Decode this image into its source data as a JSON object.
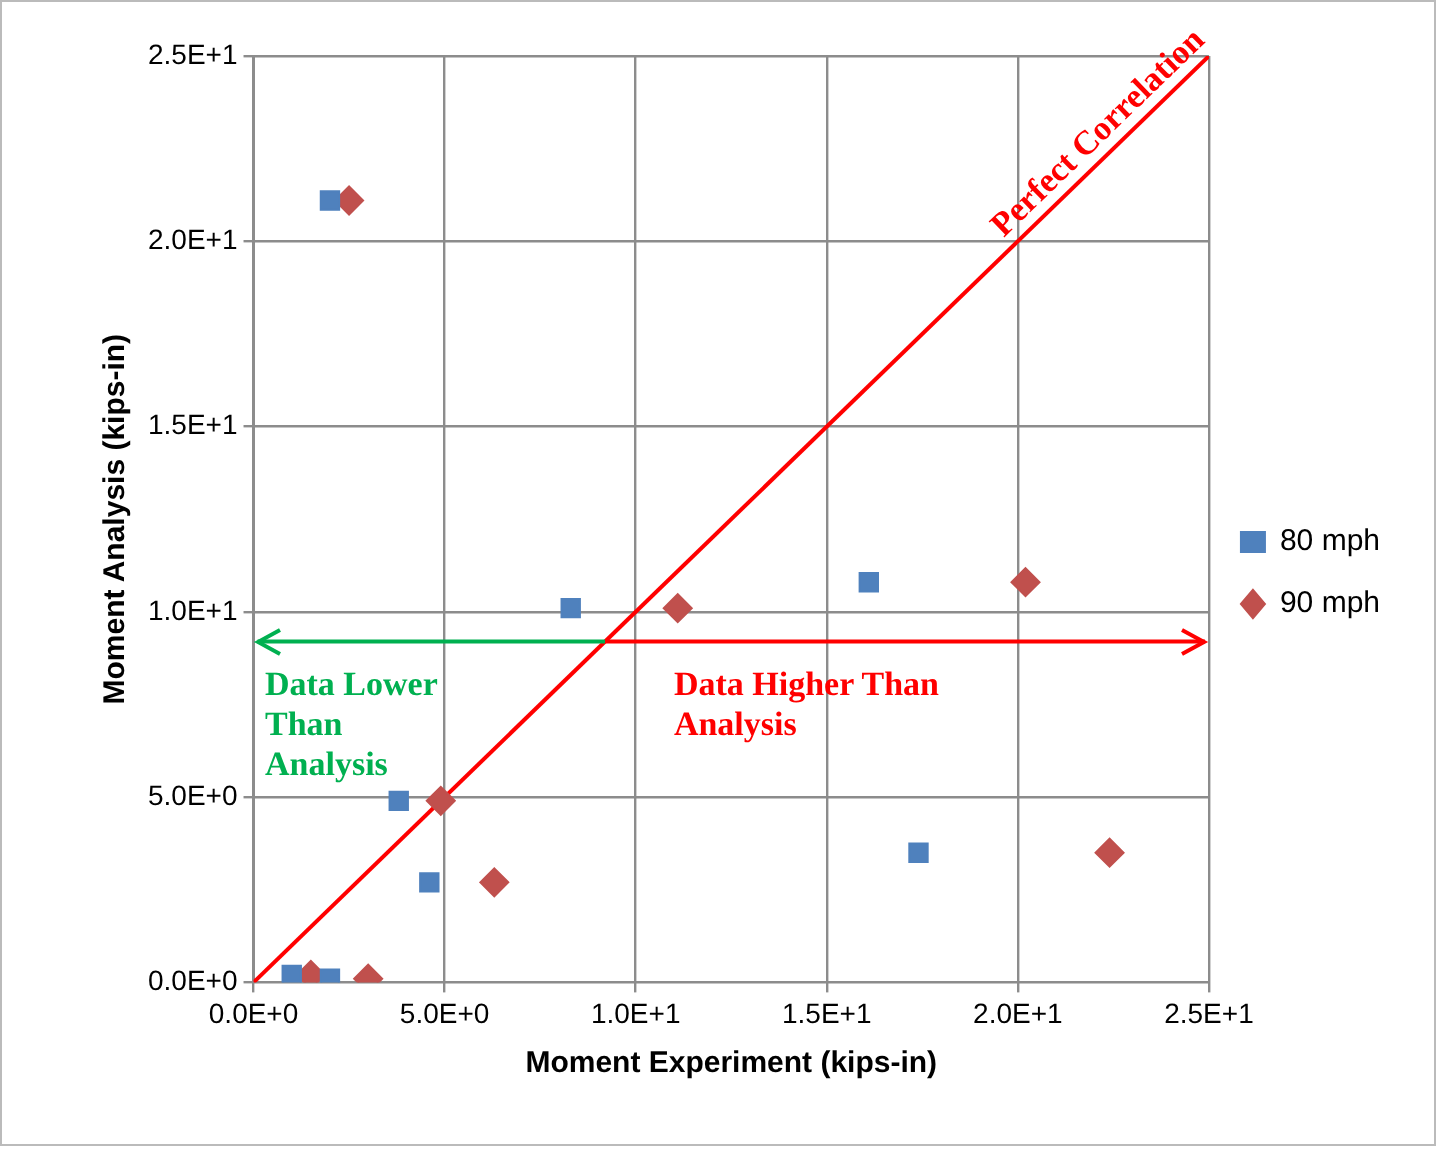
{
  "chart_data": {
    "type": "scatter",
    "xlabel": "Moment Experiment (kips-in)",
    "ylabel": "Moment Analysis (kips-in)",
    "xlim": [
      0,
      25
    ],
    "ylim": [
      0,
      25
    ],
    "xticks": [
      {
        "value": 0,
        "label": "0.0E+0"
      },
      {
        "value": 5,
        "label": "5.0E+0"
      },
      {
        "value": 10,
        "label": "1.0E+1"
      },
      {
        "value": 15,
        "label": "1.5E+1"
      },
      {
        "value": 20,
        "label": "2.0E+1"
      },
      {
        "value": 25,
        "label": "2.5E+1"
      }
    ],
    "yticks": [
      {
        "value": 0,
        "label": "0.0E+0"
      },
      {
        "value": 5,
        "label": "5.0E+0"
      },
      {
        "value": 10,
        "label": "1.0E+1"
      },
      {
        "value": 15,
        "label": "1.5E+1"
      },
      {
        "value": 20,
        "label": "2.0E+1"
      },
      {
        "value": 25,
        "label": "2.5E+1"
      }
    ],
    "grid": true,
    "legend": "right",
    "series": [
      {
        "name": "80 mph",
        "color": "#4f81bd",
        "marker": "square",
        "x": [
          2.0,
          8.3,
          16.1,
          3.8,
          4.6,
          17.4,
          1.0,
          2.0
        ],
        "values": [
          21.1,
          10.1,
          10.8,
          4.9,
          2.7,
          3.5,
          0.2,
          0.1
        ]
      },
      {
        "name": "90 mph",
        "color": "#c0504d",
        "marker": "diamond",
        "x": [
          2.5,
          11.1,
          20.2,
          4.9,
          6.3,
          22.4,
          1.5,
          3.0
        ],
        "values": [
          21.1,
          10.1,
          10.8,
          4.9,
          2.7,
          3.5,
          0.2,
          0.1
        ]
      },
      {
        "type": "line",
        "color": "#ff0000",
        "marker": "none",
        "x": [
          0,
          25
        ],
        "values": [
          0,
          25
        ]
      }
    ],
    "ref_lines": [
      {
        "axis": "y",
        "value": 9.2,
        "color": "#00b050"
      },
      {
        "axis": "y",
        "value": 9.2,
        "color": "#ff0000"
      }
    ],
    "annotations": [
      "Data Lower Than Analysis",
      "Data Higher Than Analysis",
      "Perfect Correlation"
    ]
  }
}
